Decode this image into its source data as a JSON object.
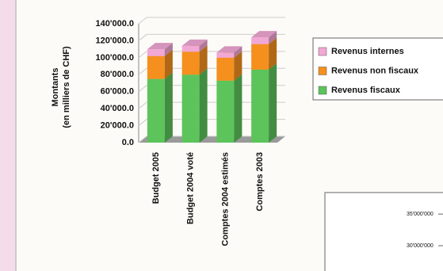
{
  "chart_data": [
    {
      "type": "bar",
      "stacked": true,
      "ylabel": [
        "Montants",
        "(en milliers de CHF)"
      ],
      "categories": [
        "Budget 2005",
        "Budget 2004 voté",
        "Comptes 2004 estimés",
        "Comptes 2003"
      ],
      "series": [
        {
          "name": "Revenus fiscaux",
          "color": "#5cc45a",
          "values": [
            75000,
            80000,
            73000,
            86000
          ]
        },
        {
          "name": "Revenus non fiscaux",
          "color": "#f5901e",
          "values": [
            27000,
            27000,
            27000,
            30000
          ]
        },
        {
          "name": "Revenus internes",
          "color": "#f2a8d4",
          "values": [
            8000,
            7000,
            6000,
            8000
          ]
        }
      ],
      "ylim": [
        0,
        140000
      ],
      "yticks": [
        {
          "value": 0,
          "label": "0.0"
        },
        {
          "value": 20000,
          "label": "20'000.0"
        },
        {
          "value": 40000,
          "label": "40'000.0"
        },
        {
          "value": 60000,
          "label": "60'000.0"
        },
        {
          "value": 80000,
          "label": "80'000.0"
        },
        {
          "value": 100000,
          "label": "100'000.0"
        },
        {
          "value": 120000,
          "label": "120'000.0"
        },
        {
          "value": 140000,
          "label": "140'000.0"
        }
      ],
      "grid": true
    },
    {
      "type": "bar",
      "ylim": [
        26000000,
        38400000
      ],
      "yticks": [
        {
          "value": 30000000,
          "label": "30'000'000"
        },
        {
          "value": 35000000,
          "label": "35'000'000"
        }
      ]
    }
  ]
}
